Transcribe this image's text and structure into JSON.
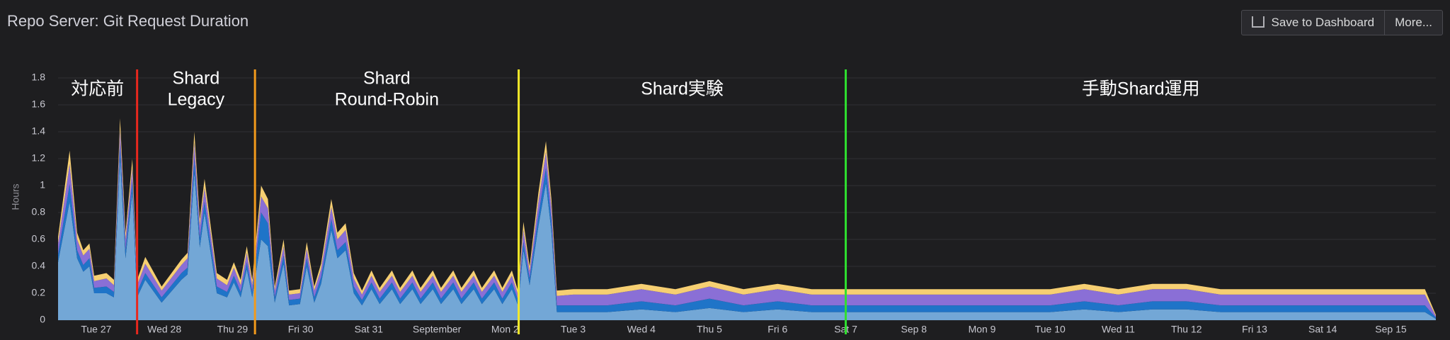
{
  "toolbar": {
    "save": "Save to Dashboard",
    "more": "More..."
  },
  "chart_data": {
    "type": "stacked-area",
    "title": "Repo Server: Git Request Duration",
    "ylabel": "Hours",
    "ylim": [
      0,
      1.9
    ],
    "yticks": [
      0,
      0.2,
      0.4,
      0.6,
      0.8,
      1,
      1.2,
      1.4,
      1.6,
      1.8
    ],
    "grid": true,
    "xlim": [
      -0.56,
      19.66
    ],
    "xticks": [
      {
        "value": 0,
        "label": "Tue 27"
      },
      {
        "value": 1,
        "label": "Wed 28"
      },
      {
        "value": 2,
        "label": "Thu 29"
      },
      {
        "value": 3,
        "label": "Fri 30"
      },
      {
        "value": 4,
        "label": "Sat 31"
      },
      {
        "value": 5,
        "label": "September"
      },
      {
        "value": 6,
        "label": "Mon 2"
      },
      {
        "value": 7,
        "label": "Tue 3"
      },
      {
        "value": 8,
        "label": "Wed 4"
      },
      {
        "value": 9,
        "label": "Thu 5"
      },
      {
        "value": 10,
        "label": "Fri 6"
      },
      {
        "value": 11,
        "label": "Sat 7"
      },
      {
        "value": 12,
        "label": "Sep 8"
      },
      {
        "value": 13,
        "label": "Mon 9"
      },
      {
        "value": 14,
        "label": "Tue 10"
      },
      {
        "value": 15,
        "label": "Wed 11"
      },
      {
        "value": 16,
        "label": "Thu 12"
      },
      {
        "value": 17,
        "label": "Fri 13"
      },
      {
        "value": 18,
        "label": "Sat 14"
      },
      {
        "value": 19,
        "label": "Sep 15"
      }
    ],
    "x": [
      -0.56,
      -0.39,
      -0.28,
      -0.19,
      -0.1,
      -0.03,
      0.15,
      0.26,
      0.35,
      0.43,
      0.53,
      0.6,
      0.72,
      0.96,
      1.25,
      1.34,
      1.44,
      1.52,
      1.59,
      1.77,
      1.92,
      2.02,
      2.12,
      2.21,
      2.29,
      2.42,
      2.52,
      2.62,
      2.75,
      2.83,
      2.99,
      3.09,
      3.2,
      3.3,
      3.45,
      3.54,
      3.66,
      3.78,
      3.9,
      4.04,
      4.16,
      4.34,
      4.46,
      4.64,
      4.76,
      4.94,
      5.06,
      5.24,
      5.36,
      5.54,
      5.66,
      5.84,
      5.96,
      6.1,
      6.19,
      6.27,
      6.36,
      6.49,
      6.6,
      6.68,
      6.76,
      7,
      7.5,
      8,
      8.5,
      9,
      9.5,
      10,
      10.5,
      11,
      11.5,
      12,
      12.5,
      13,
      13.5,
      14,
      14.5,
      15,
      15.5,
      16,
      16.5,
      17,
      17.5,
      18,
      18.5,
      19,
      19.5,
      19.66
    ],
    "series": [
      {
        "color": "#73a7d6",
        "values": [
          0.43,
          0.88,
          0.46,
          0.36,
          0.4,
          0.2,
          0.2,
          0.17,
          1.2,
          0.46,
          0.95,
          0.17,
          0.3,
          0.13,
          0.3,
          0.34,
          1.1,
          0.54,
          0.8,
          0.2,
          0.17,
          0.28,
          0.17,
          0.38,
          0.17,
          0.6,
          0.55,
          0.13,
          0.42,
          0.11,
          0.12,
          0.4,
          0.13,
          0.27,
          0.67,
          0.46,
          0.52,
          0.2,
          0.11,
          0.23,
          0.12,
          0.23,
          0.12,
          0.23,
          0.12,
          0.23,
          0.12,
          0.23,
          0.12,
          0.23,
          0.12,
          0.23,
          0.12,
          0.23,
          0.11,
          0.52,
          0.26,
          0.7,
          1.02,
          0.66,
          0.06,
          0.06,
          0.06,
          0.08,
          0.06,
          0.09,
          0.06,
          0.08,
          0.06,
          0.06,
          0.06,
          0.06,
          0.06,
          0.06,
          0.06,
          0.06,
          0.08,
          0.06,
          0.08,
          0.08,
          0.06,
          0.06,
          0.06,
          0.06,
          0.06,
          0.06,
          0.06,
          0.01
        ]
      },
      {
        "color": "#1f74c8",
        "values": [
          0.06,
          0.13,
          0.06,
          0.05,
          0.06,
          0.04,
          0.05,
          0.04,
          0.1,
          0.06,
          0.08,
          0.04,
          0.05,
          0.04,
          0.05,
          0.05,
          0.1,
          0.07,
          0.08,
          0.05,
          0.04,
          0.05,
          0.04,
          0.05,
          0.04,
          0.2,
          0.17,
          0.04,
          0.06,
          0.04,
          0.04,
          0.06,
          0.04,
          0.05,
          0.08,
          0.06,
          0.06,
          0.05,
          0.04,
          0.05,
          0.04,
          0.05,
          0.04,
          0.05,
          0.04,
          0.05,
          0.04,
          0.05,
          0.04,
          0.05,
          0.04,
          0.05,
          0.04,
          0.05,
          0.04,
          0.06,
          0.05,
          0.08,
          0.11,
          0.08,
          0.05,
          0.05,
          0.05,
          0.06,
          0.05,
          0.07,
          0.05,
          0.06,
          0.05,
          0.05,
          0.05,
          0.05,
          0.05,
          0.05,
          0.05,
          0.05,
          0.06,
          0.05,
          0.06,
          0.06,
          0.05,
          0.05,
          0.05,
          0.05,
          0.05,
          0.05,
          0.05,
          0.01
        ]
      },
      {
        "color": "#8a6fd6",
        "values": [
          0.08,
          0.15,
          0.08,
          0.07,
          0.07,
          0.05,
          0.06,
          0.05,
          0.12,
          0.08,
          0.1,
          0.05,
          0.07,
          0.05,
          0.06,
          0.07,
          0.12,
          0.09,
          0.1,
          0.06,
          0.05,
          0.06,
          0.05,
          0.07,
          0.05,
          0.12,
          0.11,
          0.05,
          0.07,
          0.04,
          0.04,
          0.07,
          0.05,
          0.06,
          0.09,
          0.08,
          0.09,
          0.06,
          0.04,
          0.05,
          0.05,
          0.05,
          0.05,
          0.05,
          0.05,
          0.05,
          0.05,
          0.05,
          0.05,
          0.05,
          0.05,
          0.05,
          0.05,
          0.05,
          0.04,
          0.09,
          0.05,
          0.1,
          0.12,
          0.1,
          0.07,
          0.08,
          0.08,
          0.09,
          0.08,
          0.09,
          0.08,
          0.09,
          0.08,
          0.08,
          0.08,
          0.08,
          0.08,
          0.08,
          0.08,
          0.08,
          0.09,
          0.08,
          0.09,
          0.09,
          0.08,
          0.08,
          0.08,
          0.08,
          0.08,
          0.08,
          0.08,
          0.01
        ]
      },
      {
        "color": "#f6cf72",
        "values": [
          0.05,
          0.1,
          0.05,
          0.04,
          0.04,
          0.04,
          0.04,
          0.04,
          0.08,
          0.05,
          0.07,
          0.04,
          0.05,
          0.03,
          0.04,
          0.04,
          0.08,
          0.05,
          0.07,
          0.04,
          0.04,
          0.04,
          0.04,
          0.05,
          0.04,
          0.08,
          0.07,
          0.03,
          0.05,
          0.03,
          0.03,
          0.05,
          0.03,
          0.04,
          0.06,
          0.05,
          0.05,
          0.04,
          0.03,
          0.04,
          0.03,
          0.04,
          0.03,
          0.04,
          0.03,
          0.04,
          0.03,
          0.04,
          0.03,
          0.04,
          0.03,
          0.04,
          0.03,
          0.04,
          0.03,
          0.06,
          0.04,
          0.07,
          0.08,
          0.06,
          0.04,
          0.04,
          0.04,
          0.04,
          0.04,
          0.04,
          0.04,
          0.04,
          0.04,
          0.04,
          0.04,
          0.04,
          0.04,
          0.04,
          0.04,
          0.04,
          0.04,
          0.04,
          0.04,
          0.04,
          0.04,
          0.04,
          0.04,
          0.04,
          0.04,
          0.04,
          0.04,
          0.01
        ]
      }
    ],
    "annotations": [
      {
        "x": 0.6,
        "color": "#e8281e"
      },
      {
        "x": 2.33,
        "color": "#f29a1c"
      },
      {
        "x": 6.2,
        "color": "#f4ea2a"
      },
      {
        "x": 11,
        "color": "#2fe02f"
      }
    ],
    "annotation_texts": [
      [
        "対応前"
      ],
      [
        "Shard",
        "Legacy"
      ],
      [
        "Shard",
        "Round-Robin"
      ],
      [
        "Shard実験"
      ],
      [
        "手動Shard運用"
      ]
    ]
  }
}
